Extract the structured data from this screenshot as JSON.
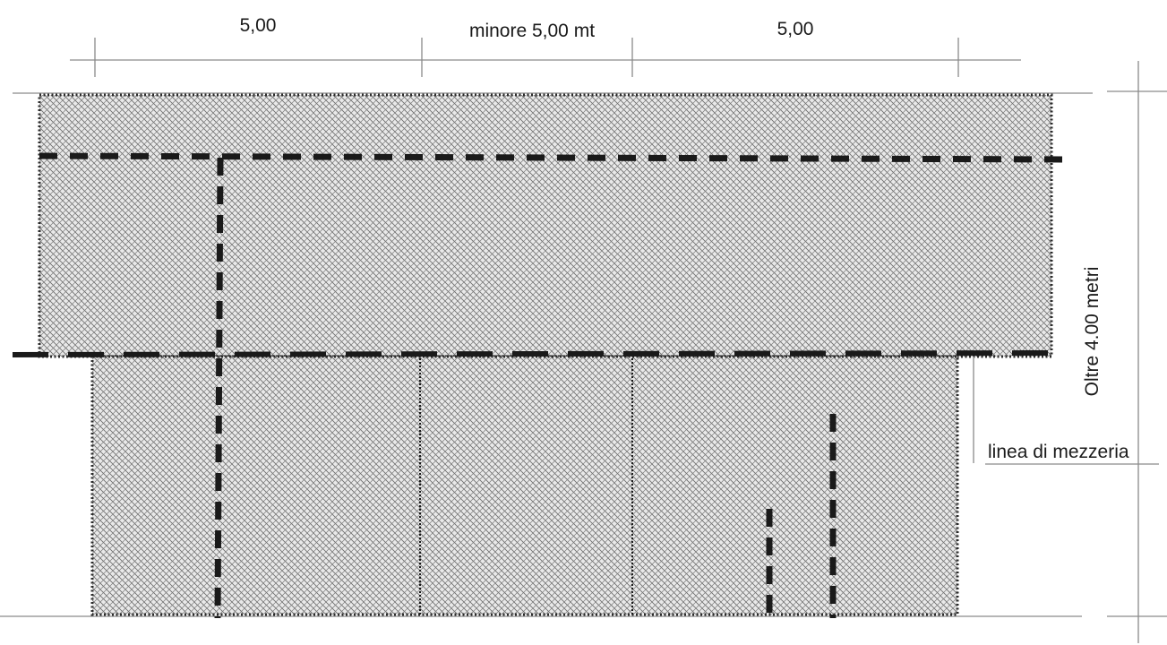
{
  "dimensions": {
    "left_span": "5,00",
    "middle_span": "minore 5,00 mt",
    "right_span": "5,00",
    "height": "Oltre 4.00 metri"
  },
  "labels": {
    "centerline": "linea di mezzeria"
  }
}
